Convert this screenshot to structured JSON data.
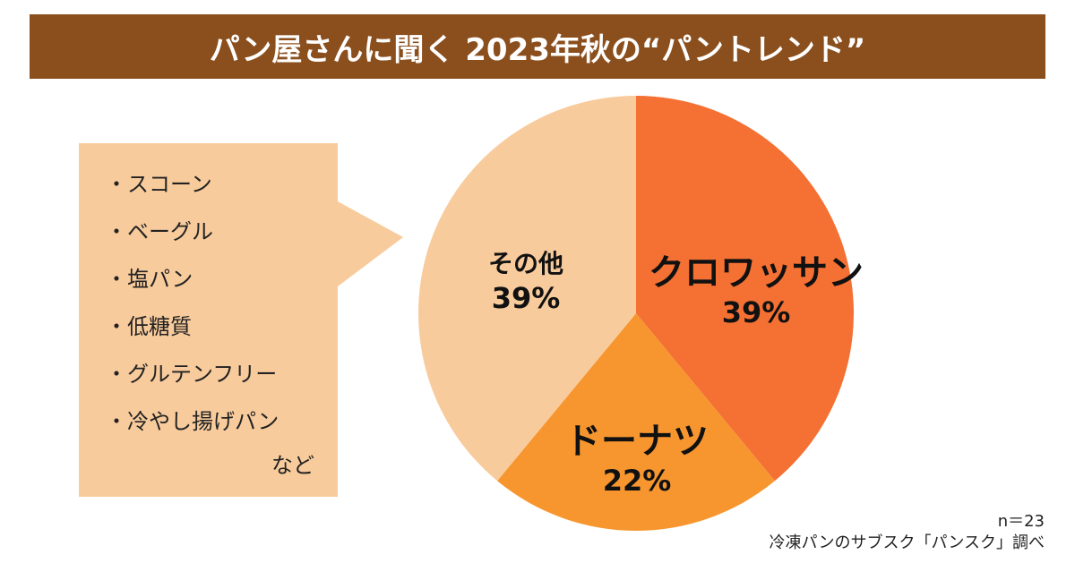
{
  "title": "パン屋さんに聞く 2023年秋の“パントレンド”",
  "callout": {
    "items": [
      "・スコーン",
      "・ベーグル",
      "・塩パン",
      "・低糖質",
      "・グルテンフリー",
      "・冷やし揚げパン"
    ],
    "suffix": "など",
    "color": "#F8CB9C"
  },
  "chart_data": {
    "type": "pie",
    "title": "パン屋さんに聞く 2023年秋の“パントレンド”",
    "slices": [
      {
        "label": "クロワッサン",
        "value": 39,
        "value_label": "39%",
        "color": "#F47033"
      },
      {
        "label": "ドーナツ",
        "value": 22,
        "value_label": "22%",
        "color": "#F7962F"
      },
      {
        "label": "その他",
        "value": 39,
        "value_label": "39%",
        "color": "#F8CB9C"
      }
    ],
    "start": "top",
    "direction": "clockwise"
  },
  "footnote": {
    "n": "n＝23",
    "source": "冷凍パンのサブスク「パンスク」調べ"
  }
}
